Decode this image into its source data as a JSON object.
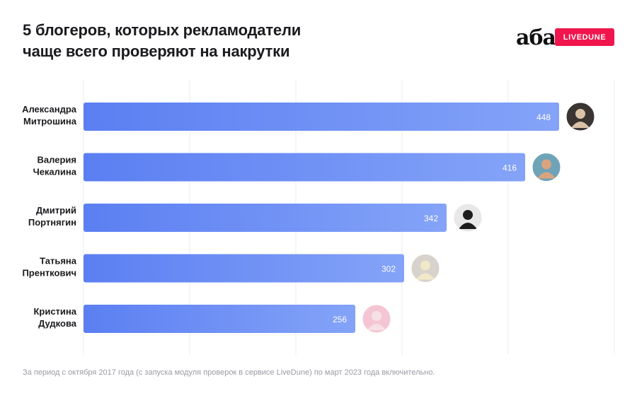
{
  "header": {
    "title": "5 блогеров, которых рекламодатели\nчаще всего проверяют на накрутки",
    "logo_text": "аба",
    "badge": "LIVEDUNE"
  },
  "colors": {
    "bar_start": "#5b7ff2",
    "bar_end": "#84a3f8",
    "badge": "#f0164d",
    "grid": "#ececf1"
  },
  "chart_data": {
    "type": "bar",
    "orientation": "horizontal",
    "categories": [
      "Александра Митрошина",
      "Валерия Чекалина",
      "Дмитрий Портнягин",
      "Татьяна Пренткович",
      "Кристина Дудкова"
    ],
    "category_lines": [
      [
        "Александра",
        "Митрошина"
      ],
      [
        "Валерия",
        "Чекалина"
      ],
      [
        "Дмитрий",
        "Портнягин"
      ],
      [
        "Татьяна",
        "Пренткович"
      ],
      [
        "Кристина",
        "Дудкова"
      ]
    ],
    "values": [
      448,
      416,
      342,
      302,
      256
    ],
    "value_labels": [
      "448",
      "416",
      "342",
      "302",
      "256"
    ],
    "xlim": [
      0,
      500
    ],
    "grid": true,
    "data_labels": "inside-end",
    "avatars": [
      "avatar-photo",
      "avatar-photo",
      "avatar-photo",
      "avatar-photo",
      "avatar-photo"
    ]
  },
  "footer": {
    "note": "За период с октября 2017 года (с запуска модуля проверок в сервисе LiveDune) по март 2023 года включительно."
  }
}
